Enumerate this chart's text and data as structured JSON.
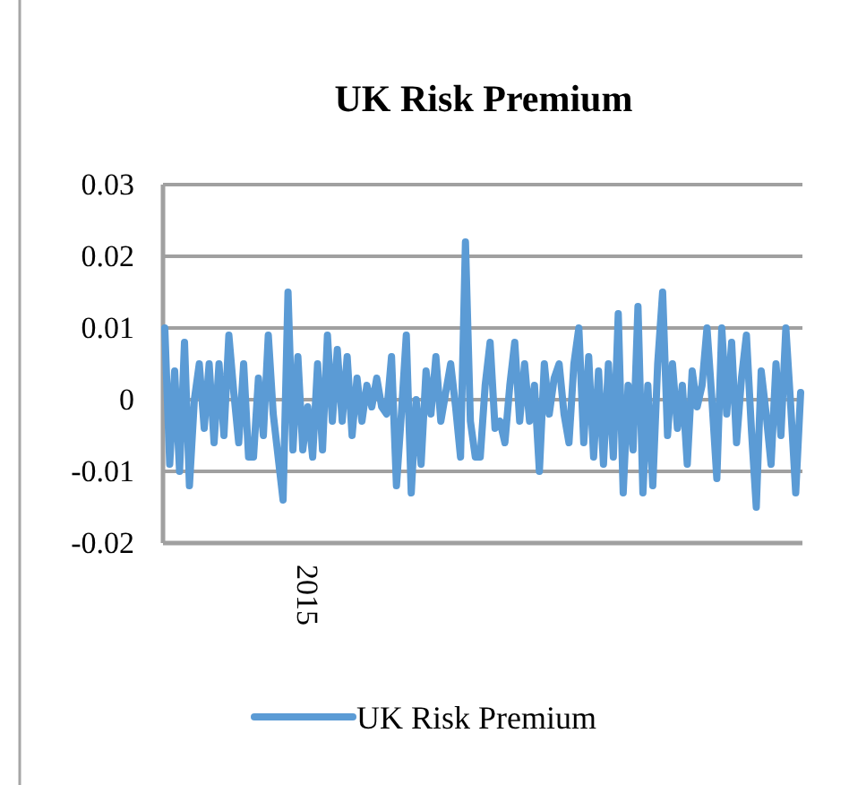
{
  "chart_data": {
    "type": "line",
    "title": "UK Risk Premium",
    "categories": [
      null,
      null,
      null,
      null,
      null,
      null,
      null,
      null,
      null,
      null,
      null,
      null,
      null,
      null,
      null,
      null,
      null,
      null,
      null,
      null,
      null,
      null,
      null,
      null,
      null,
      null,
      null,
      null,
      null,
      "2015",
      null,
      null,
      null,
      null,
      null,
      null,
      null,
      null,
      null,
      null,
      null,
      null,
      null,
      null,
      null,
      null,
      null,
      null,
      null,
      null,
      null,
      null,
      null,
      null,
      null,
      null,
      null,
      null,
      null,
      null,
      null,
      null,
      null,
      null,
      null,
      null,
      null,
      null,
      null,
      null,
      null,
      null,
      null,
      null,
      null,
      null,
      null,
      null,
      null,
      null,
      null,
      null,
      null,
      null,
      null,
      null,
      null,
      null,
      null,
      null,
      null,
      null,
      null,
      null,
      null,
      null,
      null,
      null,
      null,
      null,
      null,
      null,
      null,
      null,
      null,
      null,
      null,
      null,
      null,
      null,
      null,
      null,
      null,
      null,
      null,
      null,
      null,
      null,
      null,
      null,
      null,
      null,
      null,
      null,
      null,
      null,
      null,
      null,
      null,
      null
    ],
    "series": [
      {
        "name": "UK Risk Premium",
        "color": "#5b9bd5",
        "values": [
          0.01,
          -0.009,
          0.004,
          -0.01,
          0.008,
          -0.012,
          0.0,
          0.005,
          -0.004,
          0.005,
          -0.006,
          0.005,
          -0.005,
          0.009,
          0.001,
          -0.006,
          0.005,
          -0.008,
          -0.008,
          0.003,
          -0.005,
          0.009,
          -0.002,
          -0.008,
          -0.014,
          0.015,
          -0.007,
          0.006,
          -0.007,
          -0.001,
          -0.008,
          0.005,
          -0.007,
          0.009,
          -0.003,
          0.007,
          -0.003,
          0.006,
          -0.005,
          0.003,
          -0.003,
          0.002,
          -0.001,
          0.003,
          -0.001,
          -0.002,
          0.006,
          -0.012,
          -0.002,
          0.009,
          -0.013,
          0.0,
          -0.009,
          0.004,
          -0.002,
          0.006,
          -0.003,
          0.001,
          0.005,
          -0.001,
          -0.008,
          0.022,
          -0.003,
          -0.008,
          -0.008,
          0.002,
          0.008,
          -0.004,
          -0.003,
          -0.006,
          0.002,
          0.008,
          -0.003,
          0.005,
          -0.003,
          0.002,
          -0.01,
          0.005,
          -0.002,
          0.003,
          0.005,
          -0.002,
          -0.006,
          0.005,
          0.01,
          -0.006,
          0.006,
          -0.008,
          0.004,
          -0.009,
          0.005,
          -0.008,
          0.012,
          -0.013,
          0.002,
          -0.007,
          0.013,
          -0.013,
          0.002,
          -0.012,
          0.005,
          0.015,
          -0.005,
          0.005,
          -0.004,
          0.002,
          -0.009,
          0.004,
          -0.001,
          0.002,
          0.01,
          0.0,
          -0.011,
          0.01,
          -0.002,
          0.008,
          -0.006,
          0.003,
          0.009,
          -0.004,
          -0.015,
          0.004,
          -0.002,
          -0.009,
          0.005,
          -0.005,
          0.01,
          -0.001,
          -0.013,
          0.001
        ]
      }
    ],
    "ylim": [
      -0.02,
      0.03
    ],
    "yticks": [
      -0.02,
      -0.01,
      0,
      0.01,
      0.02,
      0.03
    ],
    "grid": "y",
    "legend": "bottom",
    "marker": "none",
    "line_style": "solid"
  }
}
